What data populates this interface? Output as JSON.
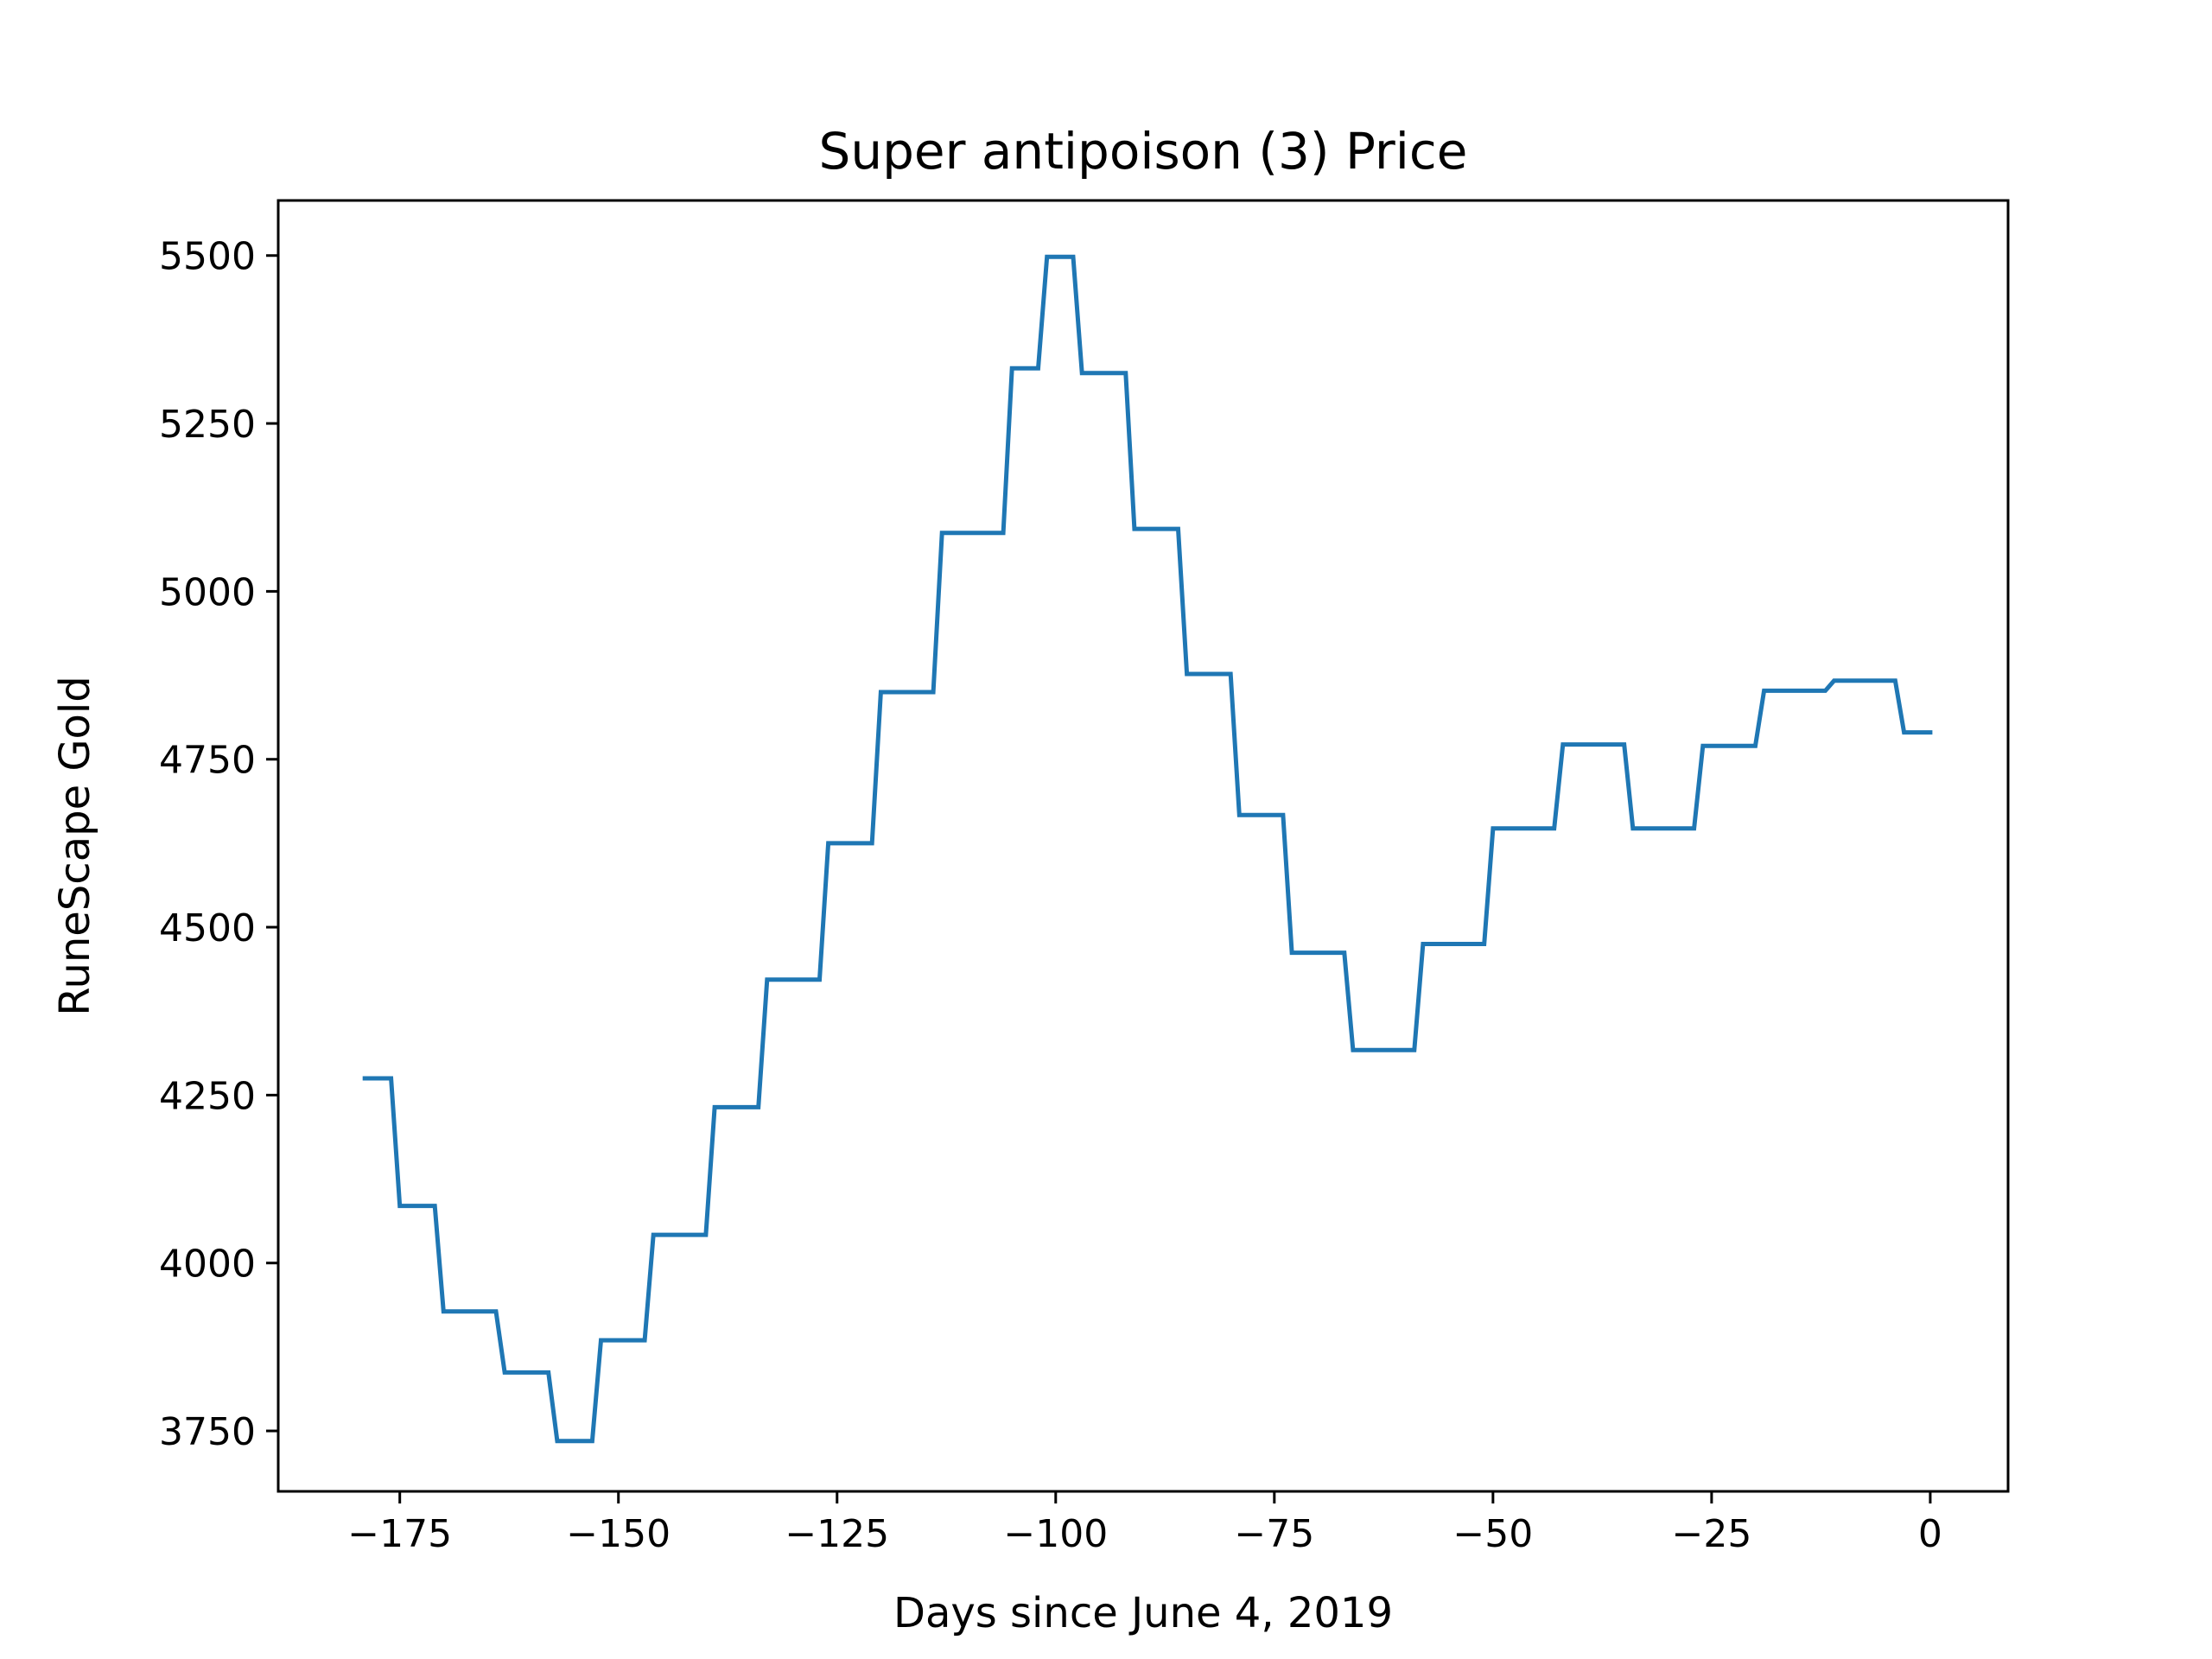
{
  "chart_data": {
    "type": "line",
    "title": "Super antipoison (3) Price",
    "xlabel": "Days since June 4, 2019",
    "ylabel": "RuneScape Gold",
    "xlim": [
      -188.9,
      8.9
    ],
    "ylim": [
      3660,
      5582
    ],
    "x_ticks": [
      -175,
      -150,
      -125,
      -100,
      -75,
      -50,
      -25,
      0
    ],
    "x_tick_labels": [
      "−175",
      "−150",
      "−125",
      "−100",
      "−75",
      "−50",
      "−25",
      "0"
    ],
    "y_ticks": [
      3750,
      4000,
      4250,
      4500,
      4750,
      5000,
      5250,
      5500
    ],
    "y_tick_labels": [
      "3750",
      "4000",
      "4250",
      "4500",
      "4750",
      "5000",
      "5250",
      "5500"
    ],
    "grid": false,
    "legend": false,
    "line_color": "#1f77b4",
    "series": [
      {
        "x": [
          -179,
          -176,
          -175,
          -171,
          -170,
          -164,
          -163,
          -158,
          -157,
          -153,
          -152,
          -147,
          -146,
          -140,
          -139,
          -134,
          -133,
          -127,
          -126,
          -121,
          -120,
          -114,
          -113,
          -106,
          -105,
          -102,
          -101,
          -98,
          -97,
          -92,
          -91,
          -86,
          -85,
          -80,
          -79,
          -74,
          -73,
          -67,
          -66,
          -59,
          -58,
          -51,
          -50,
          -43,
          -42,
          -35,
          -34,
          -27,
          -26,
          -20,
          -19,
          -12,
          -11,
          -4,
          -3,
          0
        ],
        "y": [
          4275,
          4275,
          4085,
          4085,
          3928,
          3928,
          3837,
          3837,
          3735,
          3735,
          3885,
          3885,
          4042,
          4042,
          4232,
          4232,
          4422,
          4422,
          4625,
          4625,
          4850,
          4850,
          5087,
          5087,
          5332,
          5332,
          5498,
          5498,
          5325,
          5325,
          5093,
          5093,
          4877,
          4877,
          4667,
          4667,
          4462,
          4462,
          4317,
          4317,
          4475,
          4475,
          4647,
          4647,
          4772,
          4772,
          4647,
          4647,
          4770,
          4770,
          4852,
          4852,
          4867,
          4867,
          4790,
          4790
        ]
      }
    ]
  }
}
